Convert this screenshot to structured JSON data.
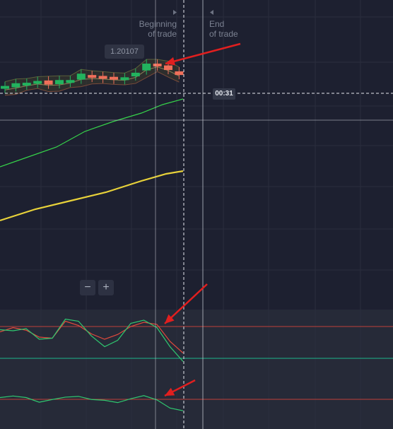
{
  "chart": {
    "markers": {
      "beginning_label_line1": "Beginning",
      "beginning_label_line2": "of trade",
      "end_label_line1": "End",
      "end_label_line2": "of trade"
    },
    "price_label": "1.20107",
    "timer": "00:31",
    "colors": {
      "background": "#1d2030",
      "oscillator_background": "#262a38",
      "grid": "#2a2e3e",
      "bull_candle": "#22b35e",
      "bear_candle": "#ef6f5a",
      "slow_ma": "#e8d23a",
      "fast_ma": "#36d34a",
      "annotation_arrow": "#e11f1f",
      "oscillator_level": "#c0403a",
      "oscillator_mid": "#1f9a7c"
    }
  },
  "zoom": {
    "out_label": "−",
    "in_label": "+"
  },
  "chart_data": {
    "type": "candlestick",
    "candles": [
      {
        "open": 1.20053,
        "close": 1.20058,
        "color": "bull"
      },
      {
        "open": 1.20055,
        "close": 1.20064,
        "color": "bull"
      },
      {
        "open": 1.20064,
        "close": 1.20065,
        "color": "bull"
      },
      {
        "open": 1.20068,
        "close": 1.20069,
        "color": "bull"
      },
      {
        "open": 1.2007,
        "close": 1.20061,
        "color": "bear"
      },
      {
        "open": 1.20062,
        "close": 1.20071,
        "color": "bull"
      },
      {
        "open": 1.2007,
        "close": 1.20071,
        "color": "bull"
      },
      {
        "open": 1.20072,
        "close": 1.20085,
        "color": "bull"
      },
      {
        "open": 1.20082,
        "close": 1.20078,
        "color": "bear"
      },
      {
        "open": 1.20079,
        "close": 1.2008,
        "color": "bear"
      },
      {
        "open": 1.20077,
        "close": 1.20078,
        "color": "bear"
      },
      {
        "open": 1.20076,
        "close": 1.20077,
        "color": "bull"
      },
      {
        "open": 1.20079,
        "close": 1.20087,
        "color": "bull"
      },
      {
        "open": 1.20092,
        "close": 1.20107,
        "color": "bull"
      },
      {
        "open": 1.20107,
        "close": 1.20105,
        "color": "bear"
      },
      {
        "open": 1.20103,
        "close": 1.20093,
        "color": "bear"
      },
      {
        "open": 1.2009,
        "close": 1.20082,
        "color": "bear"
      }
    ],
    "oscillator_1": {
      "red": [
        50,
        58,
        53,
        40,
        38,
        70,
        62,
        46,
        36,
        45,
        60,
        68,
        64,
        32,
        10
      ],
      "green": [
        54,
        52,
        56,
        36,
        38,
        74,
        70,
        42,
        22,
        34,
        66,
        72,
        58,
        22,
        -6
      ]
    },
    "oscillator_2": {
      "green": [
        50,
        54,
        50,
        38,
        45,
        51,
        53,
        45,
        43,
        37,
        47,
        55,
        44,
        23,
        16
      ]
    }
  }
}
